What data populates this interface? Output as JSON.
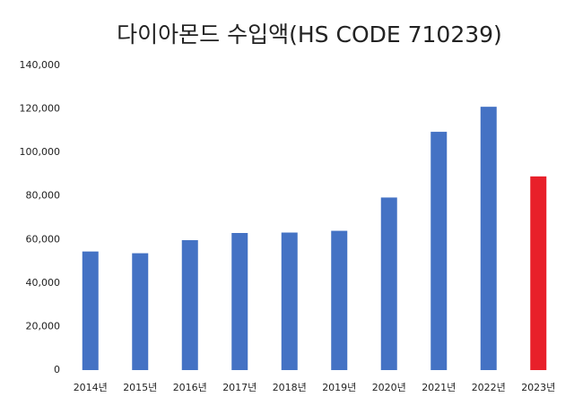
{
  "chart_data": {
    "type": "bar",
    "title": "다이아몬드 수입액(HS CODE 710239)",
    "categories": [
      "2014년",
      "2015년",
      "2016년",
      "2017년",
      "2018년",
      "2019년",
      "2020년",
      "2021년",
      "2022년",
      "2023년"
    ],
    "values": [
      54500,
      53700,
      59700,
      63000,
      63200,
      64000,
      79300,
      109500,
      121000,
      89000
    ],
    "colors": [
      "#4472c4",
      "#4472c4",
      "#4472c4",
      "#4472c4",
      "#4472c4",
      "#4472c4",
      "#4472c4",
      "#4472c4",
      "#4472c4",
      "#e8202a"
    ],
    "ylim": [
      0,
      140000
    ],
    "yticks": [
      0,
      {
        "value": 20000,
        "label": "20,000"
      },
      {
        "value": 40000,
        "label": "40,000"
      },
      {
        "value": 60000,
        "label": "60,000"
      },
      {
        "value": 80000,
        "label": "80,000"
      },
      {
        "value": 100000,
        "label": "100,000"
      },
      {
        "value": 120000,
        "label": "120,000"
      },
      {
        "value": 140000,
        "label": "140,000"
      }
    ],
    "grid": true
  }
}
